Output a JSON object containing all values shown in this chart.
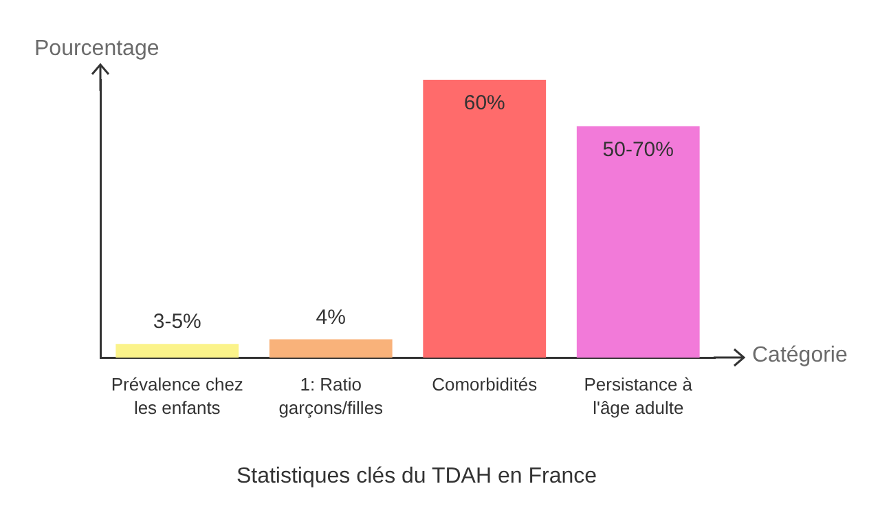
{
  "chart_data": {
    "type": "bar",
    "title": "Statistiques clés du TDAH en France",
    "xlabel": "Catégorie",
    "ylabel": "Pourcentage",
    "categories": [
      "Prévalence chez les enfants",
      "1: Ratio garçons/filles",
      "Comorbidités",
      "Persistance à l'âge adulte"
    ],
    "values": [
      3,
      4,
      60,
      50
    ],
    "value_labels": [
      "3-5%",
      "4%",
      "60%",
      "50-70%"
    ],
    "colors": [
      "#fbf38a",
      "#f9b27a",
      "#ff6b6b",
      "#f27ad9"
    ],
    "grid": false,
    "legend": false
  }
}
